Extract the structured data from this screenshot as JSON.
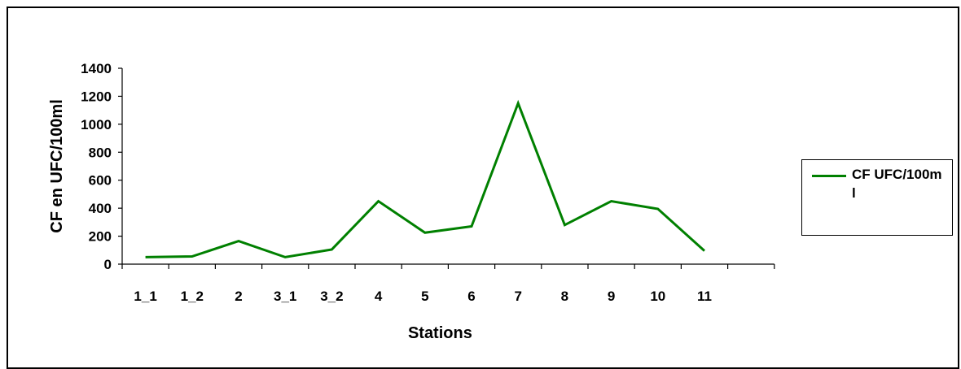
{
  "chart_data": {
    "type": "line",
    "categories": [
      "1_1",
      "1_2",
      "2",
      "3_1",
      "3_2",
      "4",
      "5",
      "6",
      "7",
      "8",
      "9",
      "10",
      "11"
    ],
    "series": [
      {
        "name": "CF UFC/100ml",
        "values": [
          50,
          55,
          165,
          50,
          105,
          450,
          225,
          270,
          1150,
          280,
          450,
          395,
          95
        ],
        "color": "#008000"
      }
    ],
    "xlabel": "Stations",
    "ylabel": "CF en UFC/100ml",
    "ylim": [
      0,
      1400
    ],
    "yticks": [
      0,
      200,
      400,
      600,
      800,
      1000,
      1200,
      1400
    ],
    "grid": false,
    "legend": "right"
  }
}
